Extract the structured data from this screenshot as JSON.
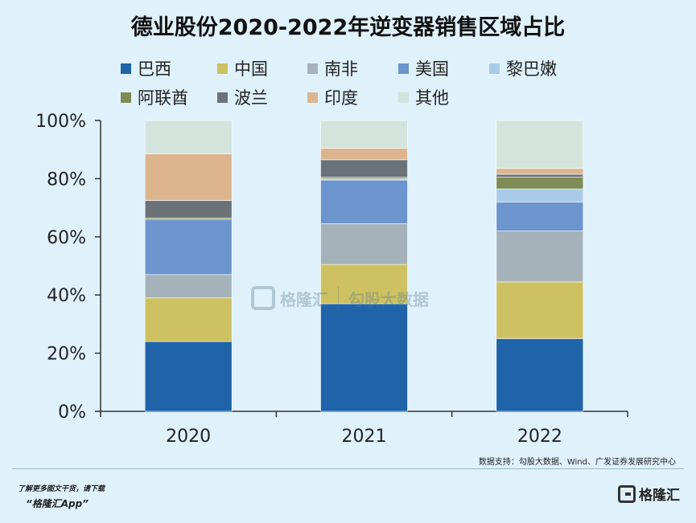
{
  "title": "德业股份2020-2022年逆变器销售区域占比",
  "chart_data": {
    "type": "bar",
    "stacked": true,
    "categories": [
      "2020",
      "2021",
      "2022"
    ],
    "ylim": [
      0,
      100
    ],
    "yticks": [
      "0%",
      "20%",
      "40%",
      "60%",
      "80%",
      "100%"
    ],
    "series": [
      {
        "name": "巴西",
        "color": "#1f64a8",
        "values": [
          24,
          37,
          25
        ]
      },
      {
        "name": "中国",
        "color": "#cdc161",
        "values": [
          15,
          13.5,
          19.5
        ]
      },
      {
        "name": "南非",
        "color": "#a6b2ba",
        "values": [
          8,
          14,
          17.5
        ]
      },
      {
        "name": "美国",
        "color": "#6b95cc",
        "values": [
          19,
          15,
          10
        ]
      },
      {
        "name": "黎巴嫩",
        "color": "#a9cbe8",
        "values": [
          0,
          0.5,
          4.5
        ]
      },
      {
        "name": "阿联酋",
        "color": "#7f8b55",
        "values": [
          0.5,
          0.5,
          4
        ]
      },
      {
        "name": "波兰",
        "color": "#6c7378",
        "values": [
          6,
          6,
          1
        ]
      },
      {
        "name": "印度",
        "color": "#dcb58f",
        "values": [
          16,
          4,
          2
        ]
      },
      {
        "name": "其他",
        "color": "#d3e4dc",
        "values": [
          11.5,
          9.5,
          16.5
        ]
      }
    ]
  },
  "source": "数据支持：勾股大数据、Wind、广发证券发展研究中心",
  "promo": {
    "line1": "了解更多图文干货，请下载",
    "line2": "“格隆汇App”"
  },
  "watermark": {
    "brand": "格隆汇",
    "sub": "勾股大数据"
  },
  "logo": {
    "text": "格隆汇",
    "icon": "gelonghui-logo-icon"
  }
}
